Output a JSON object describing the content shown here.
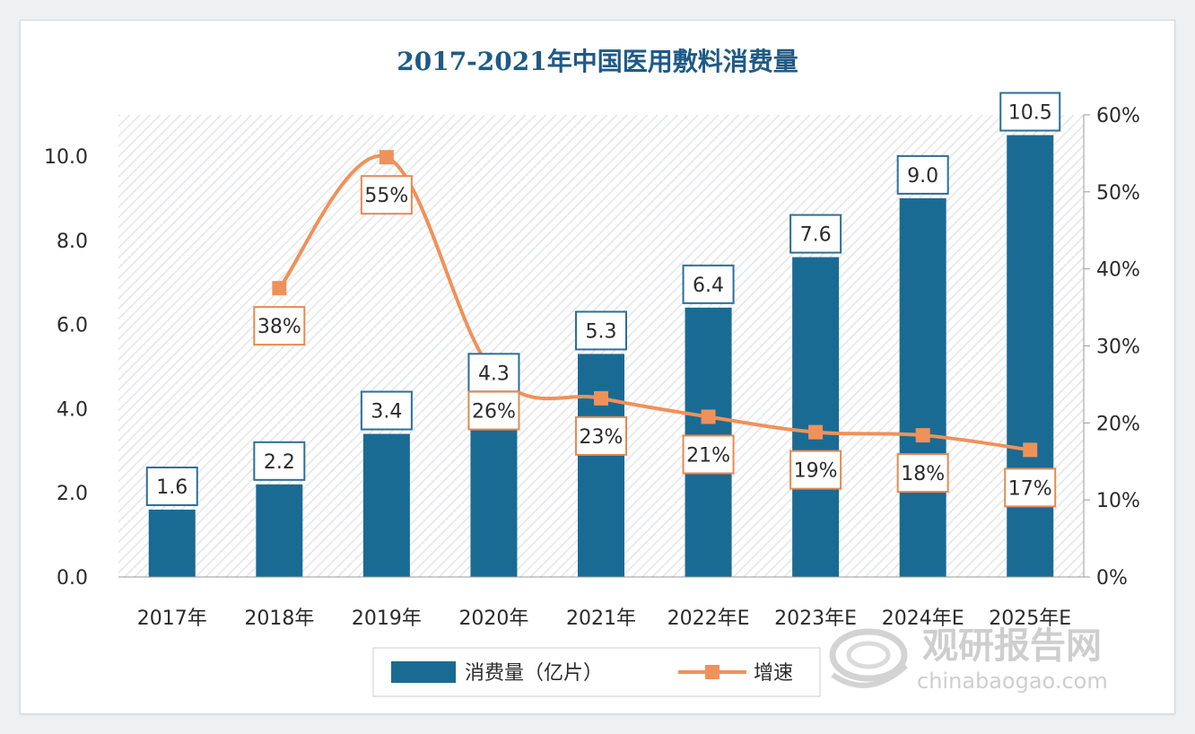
{
  "chart_data": {
    "type": "bar",
    "title": "2017-2021年中国医用敷料消费量",
    "categories": [
      "2017年",
      "2018年",
      "2019年",
      "2020年",
      "2021年",
      "2022年E",
      "2023年E",
      "2024年E",
      "2025年E"
    ],
    "series": [
      {
        "name": "消费量（亿片）",
        "type": "bar",
        "axis": "left",
        "values": [
          1.6,
          2.2,
          3.4,
          4.3,
          5.3,
          6.4,
          7.6,
          9.0,
          10.5
        ],
        "labels": [
          "1.6",
          "2.2",
          "3.4",
          "4.3",
          "5.3",
          "6.4",
          "7.6",
          "9.0",
          "10.5"
        ]
      },
      {
        "name": "增速",
        "type": "line",
        "axis": "right",
        "values": [
          null,
          37.5,
          54.5,
          26.5,
          23.2,
          20.8,
          18.8,
          18.4,
          16.5
        ],
        "labels": [
          "",
          "38%",
          "55%",
          "26%",
          "23%",
          "21%",
          "19%",
          "18%",
          "17%"
        ]
      }
    ],
    "y_left": {
      "ylim": [
        0,
        11
      ],
      "ticks": [
        "0.0",
        "2.0",
        "4.0",
        "6.0",
        "8.0",
        "10.0"
      ],
      "tick_values": [
        0,
        2,
        4,
        6,
        8,
        10
      ]
    },
    "y_right": {
      "ylim": [
        0,
        60
      ],
      "ticks": [
        "0%",
        "10%",
        "20%",
        "30%",
        "40%",
        "50%",
        "60%"
      ],
      "tick_values": [
        0,
        10,
        20,
        30,
        40,
        50,
        60
      ]
    },
    "legend_position": "bottom",
    "grid": false,
    "colors": {
      "bar": "#1a6b94",
      "line": "#f0915a",
      "title": "#1f5a86"
    }
  },
  "watermark": {
    "cn": "观研报告网",
    "en": "chinabaogao.com"
  }
}
